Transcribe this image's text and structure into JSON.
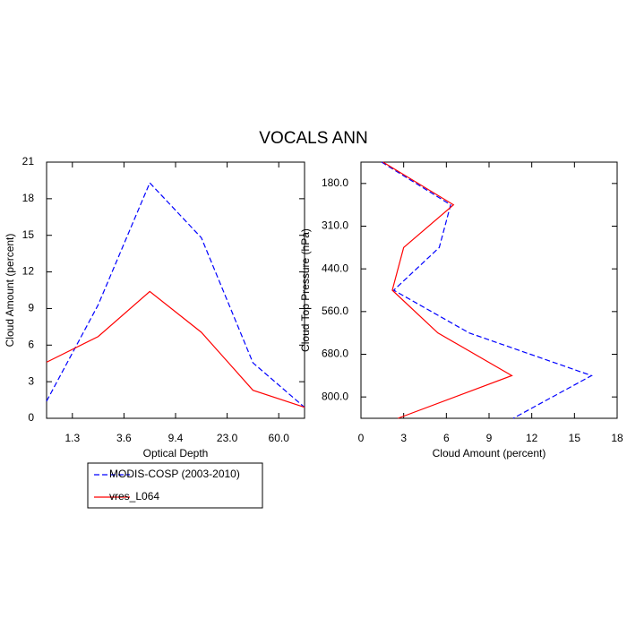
{
  "title": "VOCALS ANN",
  "chart_data": [
    {
      "type": "line",
      "orientation": "vertical",
      "x_label": "Optical Depth",
      "y_label": "Cloud Amount (percent)",
      "xlim": [
        0,
        5
      ],
      "xticks": [
        {
          "value": 0.5,
          "label": "1.3"
        },
        {
          "value": 1.5,
          "label": "3.6"
        },
        {
          "value": 2.5,
          "label": "9.4"
        },
        {
          "value": 3.5,
          "label": "23.0"
        },
        {
          "value": 4.5,
          "label": "60.0"
        }
      ],
      "ylim": [
        0,
        21
      ],
      "yticks": [
        0,
        3,
        6,
        9,
        12,
        15,
        18,
        21
      ],
      "series": [
        {
          "name": "MODIS-COSP (2003-2010)",
          "color": "#0000ff",
          "line_style": "dashed",
          "values": [
            1.4,
            9.3,
            19.3,
            14.8,
            4.55,
            0.9
          ]
        },
        {
          "name": "vres_L064",
          "color": "#ff0000",
          "line_style": "solid",
          "values": [
            4.6,
            6.7,
            10.4,
            7.05,
            2.3,
            0.9
          ]
        }
      ]
    },
    {
      "type": "line",
      "orientation": "horizontal",
      "x_label": "Cloud Amount (percent)",
      "y_label": "Cloud Top Pressure (hPa)",
      "xlim": [
        0,
        18
      ],
      "xticks": [
        0,
        3,
        6,
        9,
        12,
        15,
        18
      ],
      "ylim": [
        6,
        0
      ],
      "yticks": [
        {
          "value": 0.5,
          "label": "180.0"
        },
        {
          "value": 1.5,
          "label": "310.0"
        },
        {
          "value": 2.5,
          "label": "440.0"
        },
        {
          "value": 3.5,
          "label": "560.0"
        },
        {
          "value": 4.5,
          "label": "680.0"
        },
        {
          "value": 5.5,
          "label": "800.0"
        }
      ],
      "series": [
        {
          "color": "#0000ff",
          "line_style": "dashed",
          "values": [
            1.45,
            6.3,
            5.5,
            2.3,
            7.6,
            16.2,
            10.7
          ]
        },
        {
          "color": "#ff0000",
          "line_style": "solid",
          "values": [
            1.55,
            6.5,
            3.0,
            2.2,
            5.4,
            10.6,
            2.6
          ]
        }
      ]
    }
  ]
}
